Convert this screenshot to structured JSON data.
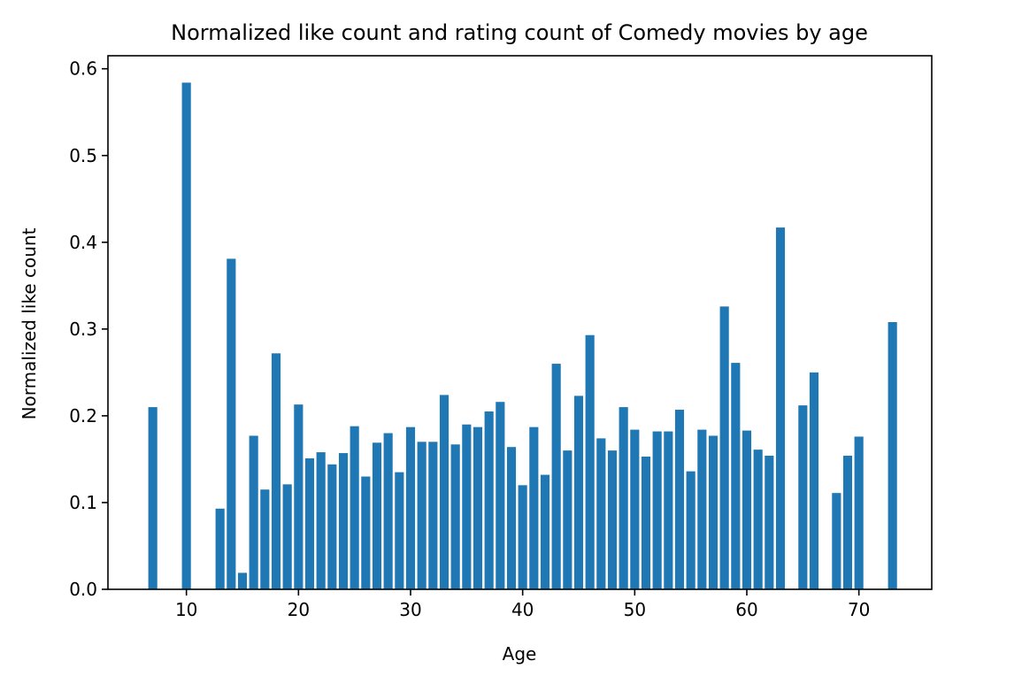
{
  "chart_data": {
    "type": "bar",
    "title": "Normalized like count and rating count of Comedy movies by age",
    "xlabel": "Age",
    "ylabel": "Normalized like count",
    "xlim": [
      3,
      76.5
    ],
    "ylim": [
      0,
      0.615
    ],
    "xticks": [
      10,
      20,
      30,
      40,
      50,
      60,
      70
    ],
    "yticks": [
      0.0,
      0.1,
      0.2,
      0.3,
      0.4,
      0.5,
      0.6
    ],
    "xtick_labels": [
      "10",
      "20",
      "30",
      "40",
      "50",
      "60",
      "70"
    ],
    "ytick_labels": [
      "0.0",
      "0.1",
      "0.2",
      "0.3",
      "0.4",
      "0.5",
      "0.6"
    ],
    "bar_color": "#1f77b4",
    "grid": false,
    "x": [
      7,
      10,
      13,
      14,
      15,
      16,
      17,
      18,
      19,
      20,
      21,
      22,
      23,
      24,
      25,
      26,
      27,
      28,
      29,
      30,
      31,
      32,
      33,
      34,
      35,
      36,
      37,
      38,
      39,
      40,
      41,
      42,
      43,
      44,
      45,
      46,
      47,
      48,
      49,
      50,
      51,
      52,
      53,
      54,
      55,
      56,
      57,
      58,
      59,
      60,
      61,
      62,
      63,
      65,
      66,
      68,
      69,
      70,
      73
    ],
    "values": [
      0.21,
      0.584,
      0.093,
      0.381,
      0.019,
      0.177,
      0.115,
      0.272,
      0.121,
      0.213,
      0.151,
      0.158,
      0.144,
      0.157,
      0.188,
      0.13,
      0.169,
      0.18,
      0.135,
      0.187,
      0.17,
      0.17,
      0.224,
      0.167,
      0.19,
      0.187,
      0.205,
      0.216,
      0.164,
      0.12,
      0.187,
      0.132,
      0.26,
      0.16,
      0.223,
      0.293,
      0.174,
      0.16,
      0.21,
      0.184,
      0.153,
      0.182,
      0.182,
      0.207,
      0.136,
      0.184,
      0.177,
      0.326,
      0.261,
      0.183,
      0.161,
      0.154,
      0.417,
      0.212,
      0.25,
      0.111,
      0.154,
      0.176,
      0.308
    ]
  }
}
